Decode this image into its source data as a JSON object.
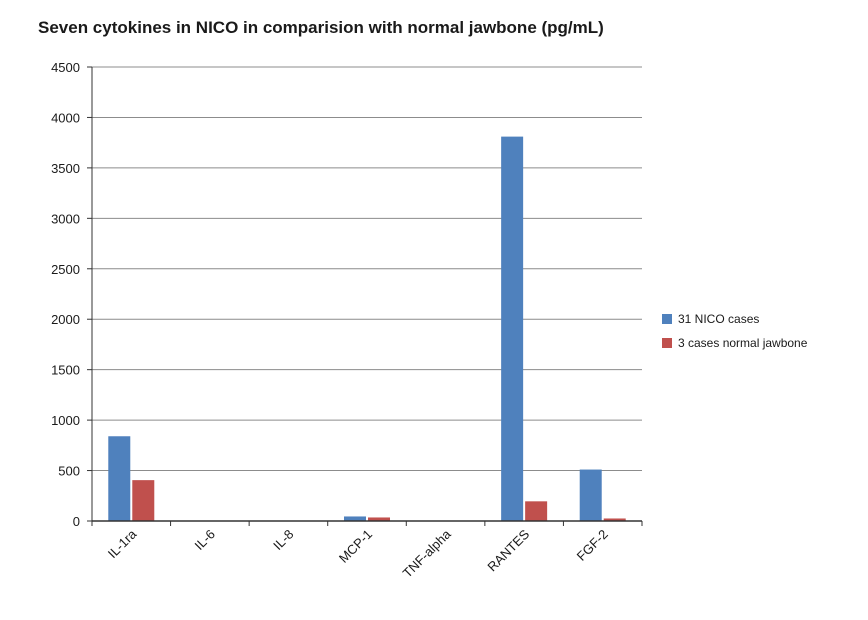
{
  "chart_data": {
    "type": "bar",
    "title": "Seven cytokines in NICO in comparision with normal jawbone (pg/mL)",
    "categories": [
      "IL-1ra",
      "IL-6",
      "IL-8",
      "MCP-1",
      "TNF-alpha",
      "RANTES",
      "FGF-2"
    ],
    "series": [
      {
        "name": "31 NICO cases",
        "color": "#4f81bd",
        "values": [
          840,
          0,
          0,
          45,
          0,
          3810,
          510
        ]
      },
      {
        "name": "3 cases normal jawbone",
        "color": "#c0504d",
        "values": [
          405,
          0,
          0,
          35,
          0,
          195,
          25
        ]
      }
    ],
    "yticks": [
      0,
      500,
      1000,
      1500,
      2000,
      2500,
      3000,
      3500,
      4000,
      4500
    ],
    "ylim": [
      0,
      4500
    ],
    "grid": true,
    "legend_position": "right"
  }
}
